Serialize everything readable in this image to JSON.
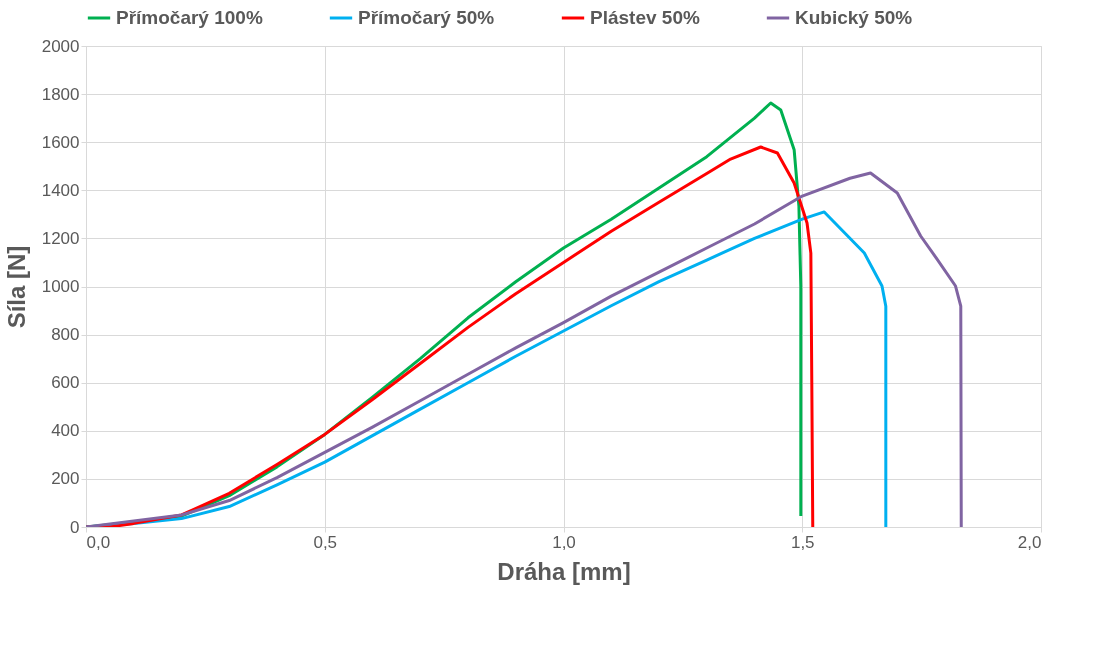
{
  "chart_data": {
    "type": "line",
    "xlabel": "Dráha [mm]",
    "ylabel": "Síla [N]",
    "xlim": [
      0,
      2
    ],
    "xticks": [
      {
        "value": 0,
        "label": "0,0"
      },
      {
        "value": 0.5,
        "label": "0,5"
      },
      {
        "value": 1,
        "label": "1,0"
      },
      {
        "value": 1.5,
        "label": "1,5"
      },
      {
        "value": 2,
        "label": "2,0"
      }
    ],
    "ylim": [
      0,
      2000
    ],
    "yticks": [
      0,
      200,
      400,
      600,
      800,
      1000,
      1200,
      1400,
      1600,
      1800,
      2000
    ],
    "grid": true,
    "legend": "top",
    "marker": "none",
    "line_style": "solid",
    "series": [
      {
        "name": "Přímočarý 100%",
        "color": "#00b050",
        "x": [
          0,
          0.1,
          0.2,
          0.3,
          0.4,
          0.5,
          0.6,
          0.7,
          0.8,
          0.9,
          1.0,
          1.1,
          1.2,
          1.3,
          1.4,
          1.434,
          1.455,
          1.483,
          1.493,
          1.497,
          1.497
        ],
        "values": [
          0,
          20,
          45,
          130,
          250,
          385,
          540,
          700,
          870,
          1020,
          1160,
          1280,
          1410,
          1540,
          1700,
          1763,
          1734,
          1569,
          1334,
          1000,
          46
        ]
      },
      {
        "name": "Přímočarý 50%",
        "color": "#00b0f0",
        "x": [
          0,
          0.1,
          0.2,
          0.3,
          0.4,
          0.5,
          0.6,
          0.7,
          0.8,
          0.9,
          1.0,
          1.1,
          1.2,
          1.3,
          1.4,
          1.5,
          1.546,
          1.63,
          1.667,
          1.675,
          1.675
        ],
        "values": [
          0,
          15,
          35,
          85,
          175,
          270,
          380,
          490,
          600,
          710,
          815,
          920,
          1020,
          1110,
          1200,
          1280,
          1310,
          1139,
          1002,
          918,
          0
        ]
      },
      {
        "name": "Plástev 50%",
        "color": "#ff0000",
        "x": [
          0,
          0.05,
          0.1,
          0.2,
          0.3,
          0.4,
          0.5,
          0.6,
          0.7,
          0.8,
          0.9,
          1.0,
          1.1,
          1.2,
          1.3,
          1.35,
          1.413,
          1.448,
          1.483,
          1.51,
          1.518,
          1.52,
          1.522
        ],
        "values": [
          0,
          0,
          15,
          50,
          140,
          260,
          385,
          530,
          680,
          830,
          970,
          1100,
          1230,
          1350,
          1470,
          1530,
          1580,
          1555,
          1430,
          1264,
          1139,
          600,
          0
        ]
      },
      {
        "name": "Kubický 50%",
        "color": "#8064a2",
        "x": [
          0,
          0.1,
          0.2,
          0.3,
          0.4,
          0.5,
          0.6,
          0.7,
          0.8,
          0.9,
          1.0,
          1.1,
          1.2,
          1.3,
          1.4,
          1.5,
          1.6,
          1.643,
          1.699,
          1.748,
          1.783,
          1.821,
          1.832,
          1.833
        ],
        "values": [
          0,
          25,
          50,
          110,
          205,
          310,
          415,
          525,
          635,
          745,
          850,
          960,
          1060,
          1160,
          1260,
          1376,
          1450,
          1472,
          1389,
          1210,
          1112,
          1002,
          918,
          0
        ]
      }
    ]
  }
}
